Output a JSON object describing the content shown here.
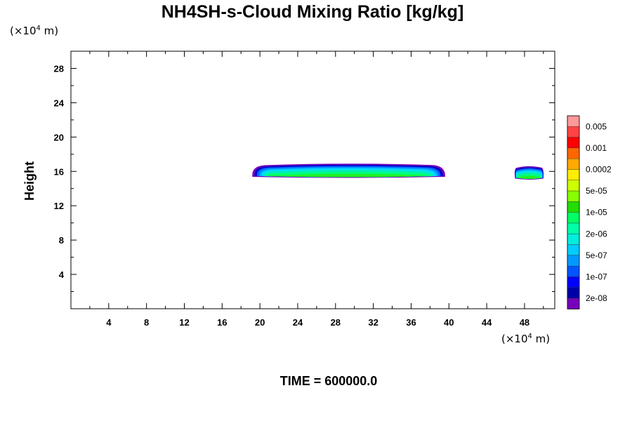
{
  "chart_data": {
    "type": "heatmap",
    "title": "NH4SH-s-Cloud Mixing Ratio [kg/kg]",
    "y_unit_prefix": "(×10",
    "y_unit_exp": "4",
    "y_unit_suffix": " m)",
    "x_unit_prefix": "(×10",
    "x_unit_exp": "4",
    "x_unit_suffix": " m)",
    "ylabel": "Height",
    "xlabel": "",
    "xlim": [
      0,
      51.2
    ],
    "ylim": [
      0,
      30
    ],
    "x_ticks": [
      "4",
      "8",
      "12",
      "16",
      "20",
      "24",
      "28",
      "32",
      "36",
      "40",
      "44",
      "48"
    ],
    "y_ticks": [
      "4",
      "8",
      "12",
      "16",
      "20",
      "24",
      "28"
    ],
    "time_label": "TIME = 600000.0",
    "colorbar": {
      "labels": [
        "0.005",
        "0.001",
        "0.0002",
        "5e-05",
        "1e-05",
        "2e-06",
        "5e-07",
        "1e-07",
        "2e-08"
      ],
      "colors_top_to_bottom": [
        "#ff9999",
        "#ff4444",
        "#ff0000",
        "#ff6600",
        "#ffaa00",
        "#ffee00",
        "#ccff00",
        "#88ff00",
        "#22dd00",
        "#00ff66",
        "#00ffaa",
        "#00eedd",
        "#00ccff",
        "#0099ff",
        "#0055ff",
        "#0000ff",
        "#0000aa",
        "#7700bb"
      ]
    },
    "cloud_layers": [
      {
        "x_range": [
          19.2,
          39.6
        ],
        "y_range": [
          15.2,
          16.9
        ],
        "core_value": "1e-05"
      },
      {
        "x_range": [
          47.0,
          50.0
        ],
        "y_range": [
          15.0,
          16.6
        ],
        "core_value": "1e-05"
      }
    ]
  }
}
